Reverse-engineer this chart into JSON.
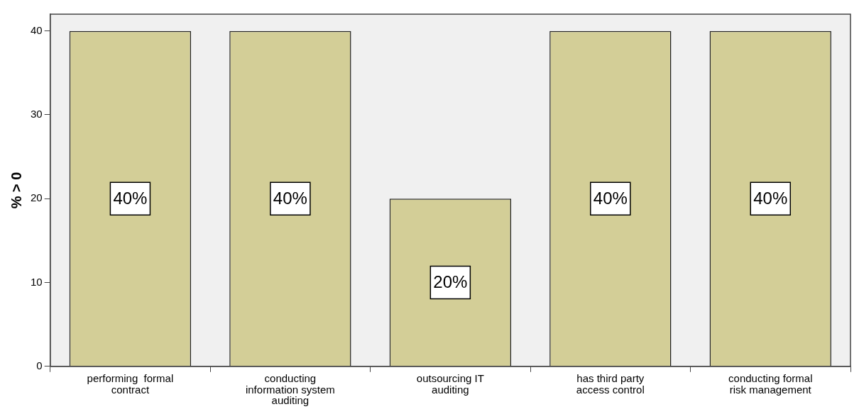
{
  "chart_data": {
    "type": "bar",
    "ylabel": "% > 0",
    "categories": [
      "performing  formal contract",
      "conducting information system auditing",
      "outsourcing IT auditing",
      "has third party access control",
      "conducting formal risk management"
    ],
    "values": [
      40,
      40,
      20,
      40,
      40
    ],
    "value_labels": [
      "40%",
      "40%",
      "20%",
      "40%",
      "40%"
    ],
    "color": "#d3ce97",
    "ylim": [
      0,
      42
    ],
    "yticks": [
      0,
      10,
      20,
      30,
      40
    ],
    "grid": false,
    "legend": false
  }
}
